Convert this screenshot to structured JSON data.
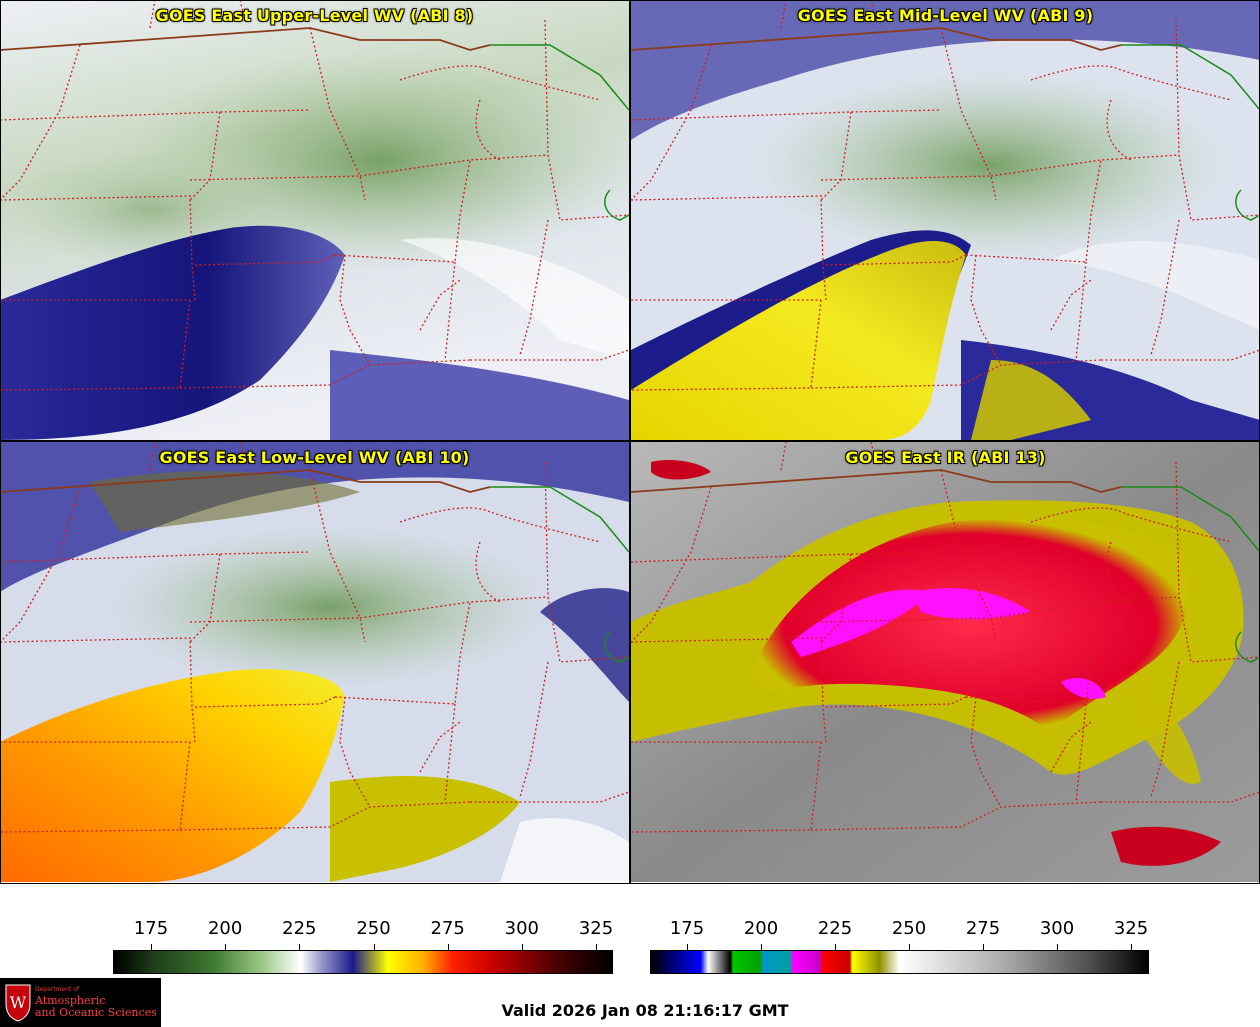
{
  "panels": {
    "upper": {
      "title": "GOES East Upper-Level WV (ABI 8)"
    },
    "mid": {
      "title": "GOES East Mid-Level WV (ABI 9)"
    },
    "low": {
      "title": "GOES East Low-Level WV (ABI 10)"
    },
    "ir": {
      "title": "GOES East IR (ABI 13)"
    }
  },
  "colorbars": {
    "wv": {
      "ticks": [
        "175",
        "200",
        "225",
        "250",
        "275",
        "300",
        "325"
      ]
    },
    "ir": {
      "ticks": [
        "175",
        "200",
        "225",
        "250",
        "275",
        "300",
        "325"
      ]
    }
  },
  "logo": {
    "department": "Department of",
    "line1": "Atmospheric",
    "line2": "and Oceanic Sciences",
    "seal_letter": "W"
  },
  "footer": {
    "valid": "Valid 2026 Jan 08 21:16:17 GMT"
  },
  "colors": {
    "boundary_state": "#d21e1e",
    "boundary_country": "#8b3a1a",
    "boundary_canada": "#1a8a1a",
    "title_text": "#ffff00"
  }
}
